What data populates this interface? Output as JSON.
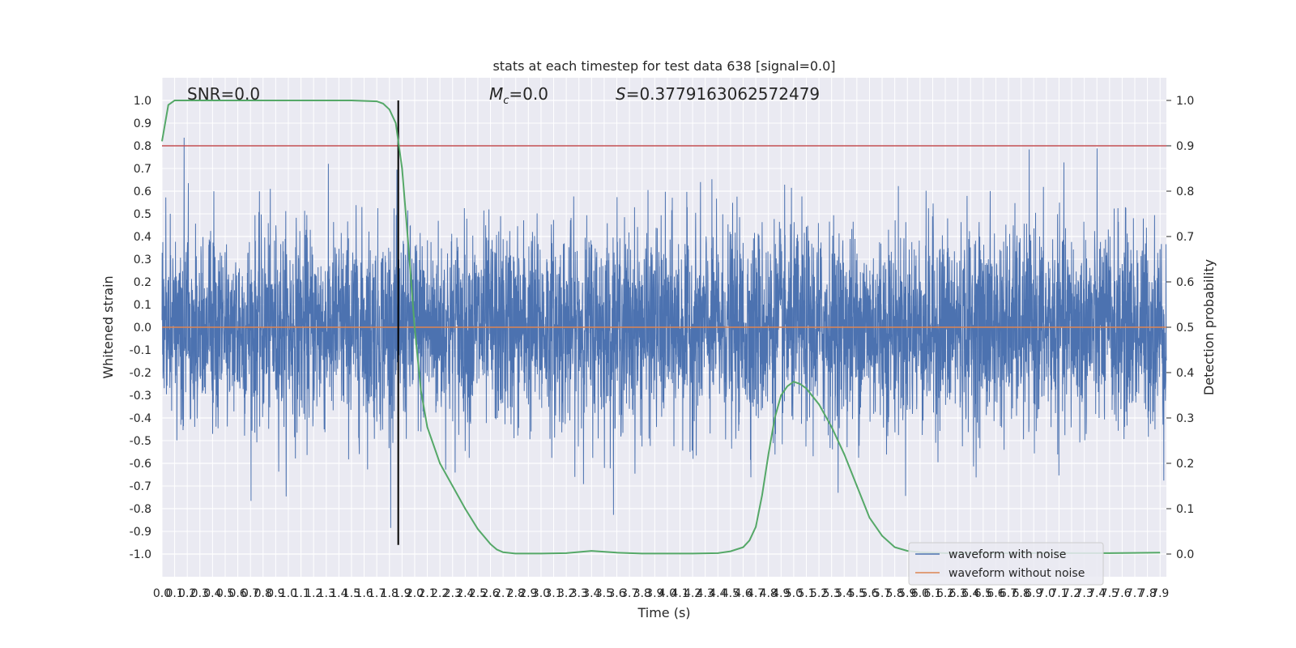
{
  "chart_data": {
    "type": "line",
    "title": "stats at each timestep for test data 638 [signal=0.0]",
    "xlabel": "Time (s)",
    "ylabel": "Whitened strain",
    "y2label": "Detection probability",
    "xlim": [
      0.0,
      7.95
    ],
    "ylim": [
      -1.1,
      1.1
    ],
    "y2lim": [
      -0.05,
      1.05
    ],
    "x_ticks": [
      "0.0",
      "0.1",
      "0.2",
      "0.3",
      "0.4",
      "0.5",
      "0.6",
      "0.7",
      "0.8",
      "0.9",
      "1.0",
      "1.1",
      "1.2",
      "1.3",
      "1.4",
      "1.5",
      "1.6",
      "1.7",
      "1.8",
      "1.9",
      "2.0",
      "2.1",
      "2.2",
      "2.3",
      "2.4",
      "2.5",
      "2.6",
      "2.7",
      "2.8",
      "2.9",
      "3.0",
      "3.1",
      "3.2",
      "3.3",
      "3.4",
      "3.5",
      "3.6",
      "3.7",
      "3.8",
      "3.9",
      "4.0",
      "4.1",
      "4.2",
      "4.3",
      "4.4",
      "4.5",
      "4.6",
      "4.7",
      "4.8",
      "4.9",
      "5.0",
      "5.1",
      "5.2",
      "5.3",
      "5.4",
      "5.5",
      "5.6",
      "5.7",
      "5.8",
      "5.9",
      "6.0",
      "6.1",
      "6.2",
      "6.3",
      "6.4",
      "6.5",
      "6.6",
      "6.7",
      "6.8",
      "6.9",
      "7.0",
      "7.1",
      "7.2",
      "7.3",
      "7.4",
      "7.5",
      "7.6",
      "7.7",
      "7.8",
      "7.9"
    ],
    "y_ticks": [
      "-1.0",
      "-0.9",
      "-0.8",
      "-0.7",
      "-0.6",
      "-0.5",
      "-0.4",
      "-0.3",
      "-0.2",
      "-0.1",
      "0.0",
      "0.1",
      "0.2",
      "0.3",
      "0.4",
      "0.5",
      "0.6",
      "0.7",
      "0.8",
      "0.9",
      "1.0"
    ],
    "y2_ticks": [
      "0.0",
      "0.1",
      "0.2",
      "0.3",
      "0.4",
      "0.5",
      "0.6",
      "0.7",
      "0.8",
      "0.9",
      "1.0"
    ],
    "annotations": {
      "snr": "SNR=0.0",
      "mc": "=0.0",
      "mc_symbol": "M",
      "mc_sub": "c",
      "s": "=0.3779163062572479",
      "s_symbol": "S"
    },
    "threshold": 0.8,
    "vertical_marker_x": 1.87,
    "series": [
      {
        "name": "waveform with noise",
        "color": "#4c72b0",
        "style": "dense-noise",
        "amplitude_peak": 1.0
      },
      {
        "name": "waveform without noise",
        "color": "#dd8452",
        "values_constant": 0.0
      },
      {
        "name": "",
        "color": "#55a868",
        "axis": "y2",
        "x": [
          0.0,
          0.05,
          0.1,
          0.2,
          0.5,
          1.0,
          1.5,
          1.7,
          1.75,
          1.8,
          1.85,
          1.9,
          1.95,
          2.0,
          2.05,
          2.1,
          2.2,
          2.3,
          2.4,
          2.5,
          2.6,
          2.65,
          2.7,
          2.8,
          3.0,
          3.2,
          3.4,
          3.6,
          3.8,
          4.0,
          4.2,
          4.4,
          4.5,
          4.6,
          4.65,
          4.7,
          4.75,
          4.8,
          4.85,
          4.9,
          4.95,
          5.0,
          5.05,
          5.1,
          5.2,
          5.3,
          5.4,
          5.5,
          5.6,
          5.7,
          5.8,
          5.9,
          6.0,
          6.2,
          6.5,
          7.0,
          7.5,
          7.9
        ],
        "y": [
          0.91,
          0.99,
          1.0,
          1.0,
          1.0,
          1.0,
          1.0,
          0.998,
          0.993,
          0.98,
          0.95,
          0.85,
          0.68,
          0.5,
          0.36,
          0.28,
          0.2,
          0.15,
          0.1,
          0.055,
          0.022,
          0.01,
          0.004,
          0.001,
          0.001,
          0.002,
          0.007,
          0.003,
          0.001,
          0.001,
          0.001,
          0.002,
          0.006,
          0.015,
          0.03,
          0.06,
          0.13,
          0.22,
          0.3,
          0.35,
          0.37,
          0.38,
          0.375,
          0.365,
          0.33,
          0.28,
          0.22,
          0.15,
          0.08,
          0.04,
          0.015,
          0.007,
          0.004,
          0.002,
          0.002,
          0.002,
          0.002,
          0.003
        ]
      }
    ],
    "legend_placement": "lower-right",
    "grid": true
  }
}
